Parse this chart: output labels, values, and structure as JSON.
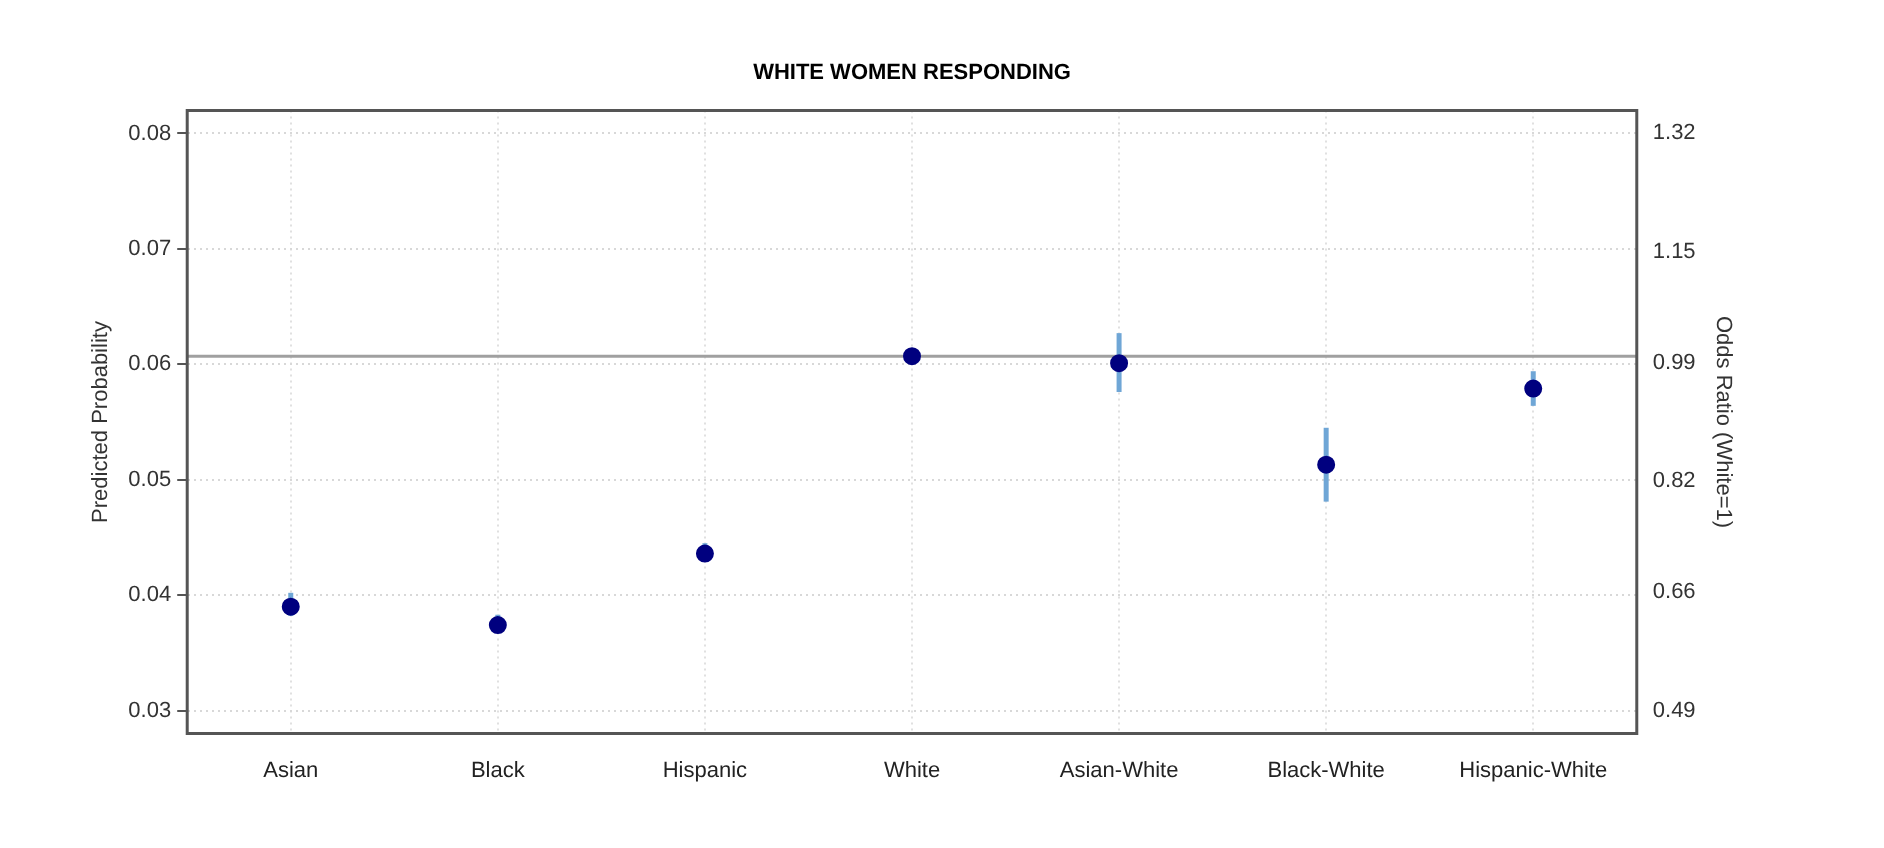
{
  "chart_data": {
    "type": "scatter",
    "title": "WHITE WOMEN RESPONDING",
    "ylabel": "Predicted Probability",
    "y2label": "Odds Ratio (White=1)",
    "categories": [
      "Asian",
      "Black",
      "Hispanic",
      "White",
      "Asian-White",
      "Black-White",
      "Hispanic-White"
    ],
    "series": [
      {
        "color": "#00007f",
        "values": [
          0.039,
          0.0374,
          0.0436,
          0.0607,
          0.0601,
          0.0513,
          0.0579
        ],
        "errors": [
          [
            0.0382,
            0.0402
          ],
          [
            0.0367,
            0.0383
          ],
          [
            0.043,
            0.0445
          ],
          null,
          [
            0.0576,
            0.0627
          ],
          [
            0.0481,
            0.0545
          ],
          [
            0.0564,
            0.0594
          ]
        ]
      }
    ],
    "ylim": [
      0.028,
      0.082
    ],
    "yticks": [
      0.03,
      0.04,
      0.05,
      0.06,
      0.07,
      0.08
    ],
    "y2lim": [
      0.457,
      1.353
    ],
    "y2ticks": [
      {
        "value": 0.49,
        "label": "0.49"
      },
      {
        "value": 0.66,
        "label": "0.66"
      },
      {
        "value": 0.82,
        "label": "0.82"
      },
      {
        "value": 0.99,
        "label": "0.99"
      },
      {
        "value": 1.15,
        "label": "1.15"
      },
      {
        "value": 1.32,
        "label": "1.32"
      }
    ],
    "ref_lines": [
      {
        "axis": "y",
        "value": 0.0607,
        "color": "#a0a0a0"
      }
    ],
    "grid": true,
    "legend": false,
    "marker": "circle"
  }
}
